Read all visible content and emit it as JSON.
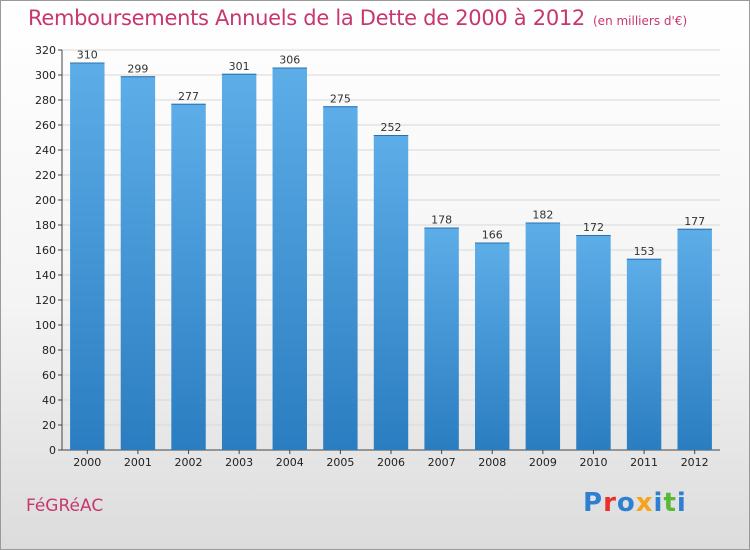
{
  "header": {
    "title": "Remboursements Annuels de la Dette de 2000 à 2012",
    "unit": "(en milliers d'€)"
  },
  "footer": {
    "commune": "FéGRéAC",
    "logo_letters": [
      {
        "ch": "P",
        "color": "#2f7fd0"
      },
      {
        "ch": "r",
        "color": "#e8312d"
      },
      {
        "ch": "o",
        "color": "#2f7fd0"
      },
      {
        "ch": "x",
        "color": "#f6a31b"
      },
      {
        "ch": "i",
        "color": "#2f7fd0"
      },
      {
        "ch": "t",
        "color": "#59b935"
      },
      {
        "ch": "i",
        "color": "#2f7fd0"
      }
    ]
  },
  "colors": {
    "bar_top": "#5dade8",
    "bar_bottom": "#2a7dc0",
    "grid": "#d8d8d8",
    "title": "#c8366f"
  },
  "chart_data": {
    "type": "bar",
    "categories": [
      "2000",
      "2001",
      "2002",
      "2003",
      "2004",
      "2005",
      "2006",
      "2007",
      "2008",
      "2009",
      "2010",
      "2011",
      "2012"
    ],
    "values": [
      310,
      299,
      277,
      301,
      306,
      275,
      252,
      178,
      166,
      182,
      172,
      153,
      177
    ],
    "ylim": [
      0,
      320
    ],
    "yticks": [
      0,
      20,
      40,
      60,
      80,
      100,
      120,
      140,
      160,
      180,
      200,
      220,
      240,
      260,
      280,
      300,
      320
    ],
    "grid": true
  }
}
